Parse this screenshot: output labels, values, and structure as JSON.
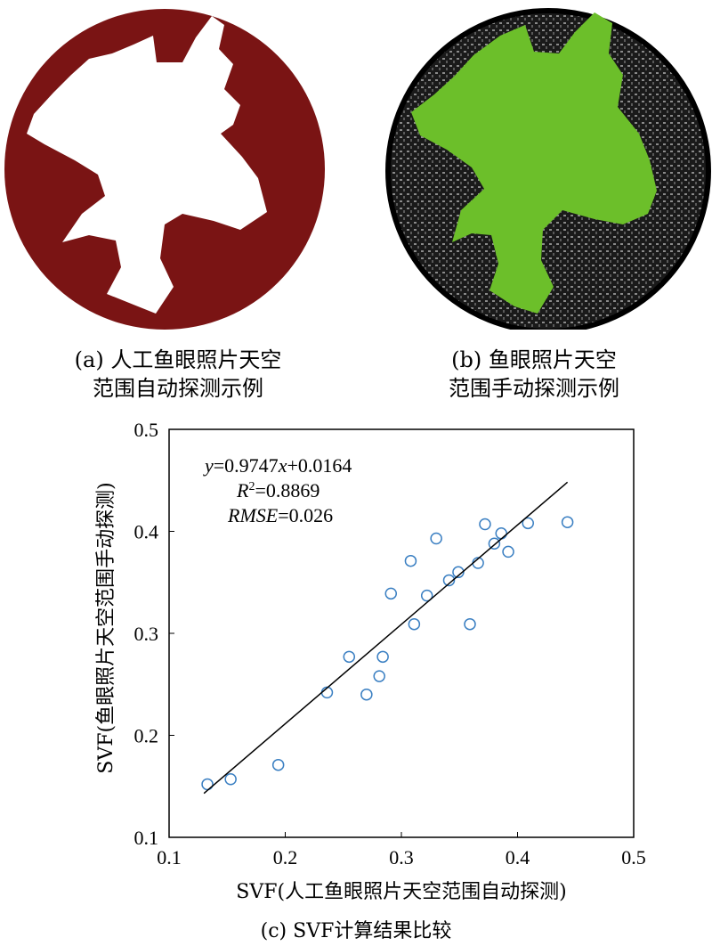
{
  "panels": {
    "a": {
      "caption_line1": "(a) 人工鱼眼照片天空",
      "caption_line2": "范围自动探测示例",
      "sky_color": "#ffffff",
      "background_color": "#7a1414"
    },
    "b": {
      "caption_line1": "(b) 鱼眼照片天空",
      "caption_line2": "范围手动探测示例",
      "sky_color": "#6cbf2a",
      "background_color": "#111111"
    },
    "c": {
      "caption": "(c) SVF计算结果比较"
    }
  },
  "chart_data": {
    "type": "scatter",
    "xlabel": "SVF(人工鱼眼照片天空范围自动探测)",
    "ylabel": "SVF(鱼眼照片天空范围手动探测)",
    "xlim": [
      0.1,
      0.5
    ],
    "ylim": [
      0.1,
      0.5
    ],
    "xticks": [
      "0.1",
      "0.2",
      "0.3",
      "0.4",
      "0.5"
    ],
    "yticks": [
      "0.1",
      "0.2",
      "0.3",
      "0.4",
      "0.5"
    ],
    "points": [
      {
        "x": 0.133,
        "y": 0.152
      },
      {
        "x": 0.153,
        "y": 0.157
      },
      {
        "x": 0.194,
        "y": 0.171
      },
      {
        "x": 0.236,
        "y": 0.242
      },
      {
        "x": 0.255,
        "y": 0.277
      },
      {
        "x": 0.27,
        "y": 0.24
      },
      {
        "x": 0.281,
        "y": 0.258
      },
      {
        "x": 0.284,
        "y": 0.277
      },
      {
        "x": 0.291,
        "y": 0.339
      },
      {
        "x": 0.308,
        "y": 0.371
      },
      {
        "x": 0.311,
        "y": 0.309
      },
      {
        "x": 0.322,
        "y": 0.337
      },
      {
        "x": 0.33,
        "y": 0.393
      },
      {
        "x": 0.341,
        "y": 0.352
      },
      {
        "x": 0.349,
        "y": 0.36
      },
      {
        "x": 0.359,
        "y": 0.309
      },
      {
        "x": 0.366,
        "y": 0.369
      },
      {
        "x": 0.372,
        "y": 0.407
      },
      {
        "x": 0.38,
        "y": 0.388
      },
      {
        "x": 0.386,
        "y": 0.398
      },
      {
        "x": 0.392,
        "y": 0.38
      },
      {
        "x": 0.409,
        "y": 0.408
      },
      {
        "x": 0.443,
        "y": 0.409
      }
    ],
    "fit_line": {
      "slope": 0.9747,
      "intercept": 0.0164,
      "x_range": [
        0.13,
        0.443
      ]
    },
    "annotations": {
      "equation_y": "y",
      "equation_rest": "=0.9747",
      "equation_x": "x",
      "equation_tail": "+0.0164",
      "r2_label": "R",
      "r2_sup": "2",
      "r2_value": "=0.8869",
      "rmse_label": "RMSE",
      "rmse_value": "=0.026"
    },
    "marker_color": "#3a7fc2",
    "line_color": "#000000",
    "grid": false
  }
}
